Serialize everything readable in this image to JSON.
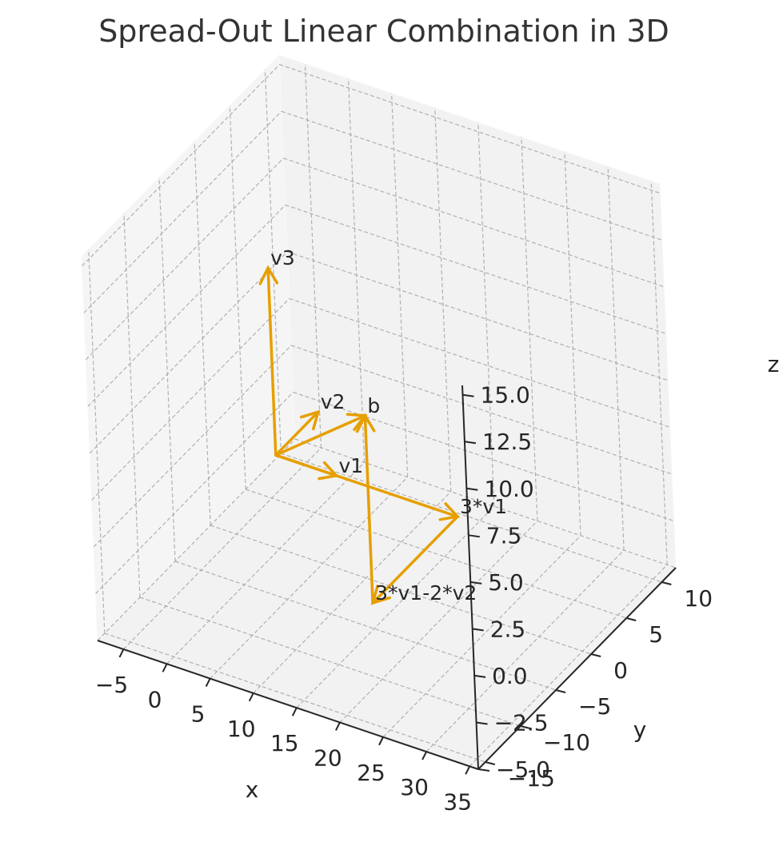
{
  "colors": {
    "vector": "#e69f00",
    "pane": "#f2f2f2",
    "grid": "#b0b0b0",
    "axis": "#262626"
  },
  "chart_data": {
    "type": "3d-vector",
    "title": "Spread-Out Linear Combination in 3D",
    "xlabel": "x",
    "ylabel": "y",
    "zlabel": "z",
    "xlim": [
      -8,
      36
    ],
    "ylim": [
      -16,
      12
    ],
    "zlim": [
      -5,
      15.5
    ],
    "xticks": [
      -5,
      0,
      5,
      10,
      15,
      20,
      25,
      30,
      35
    ],
    "xtick_labels": [
      "−5",
      "0",
      "5",
      "10",
      "15",
      "20",
      "25",
      "30",
      "35"
    ],
    "yticks": [
      -15,
      -10,
      -5,
      0,
      5,
      10
    ],
    "ytick_labels": [
      "−15",
      "−10",
      "−5",
      "0",
      "5",
      "10"
    ],
    "zticks": [
      -5,
      -2.5,
      0,
      2.5,
      5,
      7.5,
      10,
      12.5,
      15
    ],
    "ztick_labels": [
      "−5.0",
      "−2.5",
      "0.0",
      "2.5",
      "5.0",
      "7.5",
      "10.0",
      "12.5",
      "15.0"
    ],
    "grid": true,
    "vectors": [
      {
        "label": "v1",
        "start": [
          0,
          0,
          0
        ],
        "end": [
          7,
          0,
          0
        ]
      },
      {
        "label": "v2",
        "start": [
          0,
          0,
          0
        ],
        "end": [
          0,
          6,
          0
        ]
      },
      {
        "label": "v3",
        "start": [
          0,
          0,
          0
        ],
        "end": [
          0,
          0,
          10
        ]
      },
      {
        "label": "3*v1",
        "start": [
          0,
          0,
          0
        ],
        "end": [
          21,
          0,
          0
        ]
      },
      {
        "label": "3*v1-2*v2",
        "start": [
          21,
          0,
          0
        ],
        "end": [
          21,
          -12,
          0
        ]
      },
      {
        "label": "b",
        "start": [
          21,
          -12,
          0
        ],
        "end": [
          21,
          -12,
          10
        ]
      },
      {
        "label": "",
        "start": [
          0,
          0,
          0
        ],
        "end": [
          21,
          -12,
          10
        ]
      }
    ]
  }
}
